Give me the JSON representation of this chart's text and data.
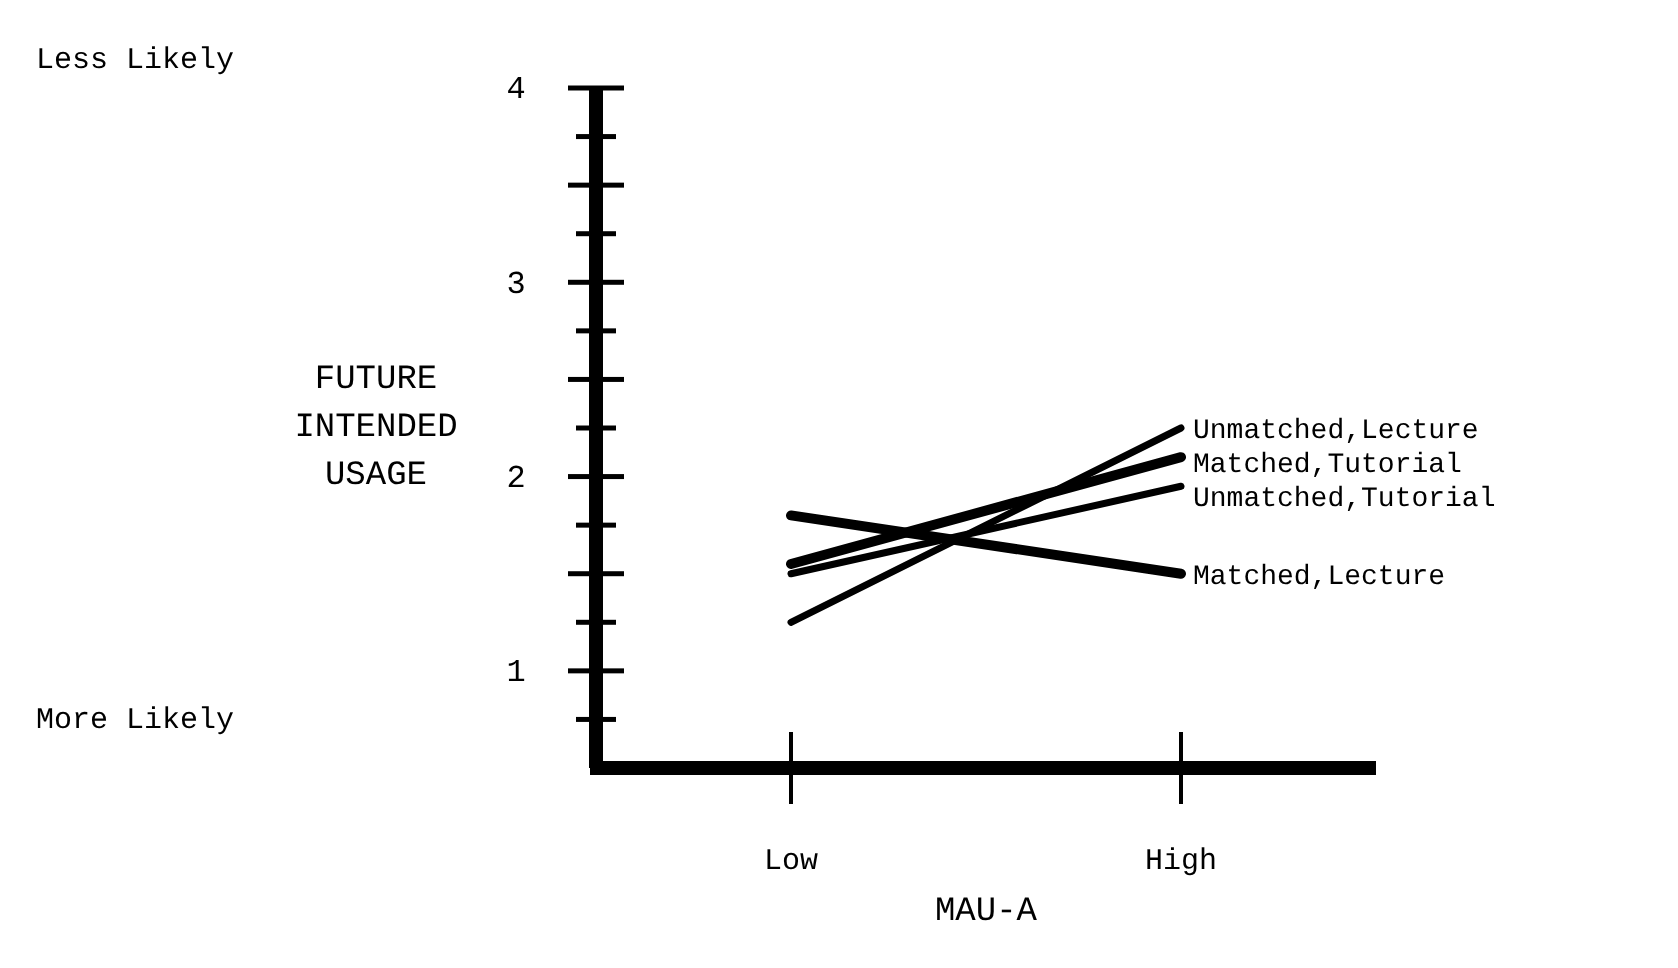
{
  "chart_data": {
    "type": "line",
    "xlabel": "MAU-A",
    "ylabel": "FUTURE INTENDED USAGE",
    "categories": [
      "Low",
      "High"
    ],
    "ylim": [
      0.5,
      4
    ],
    "yticks": [
      {
        "value": 0.75,
        "label": null
      },
      1,
      {
        "value": 1.25,
        "label": null
      },
      {
        "value": 1.5,
        "label": null
      },
      {
        "value": 1.75,
        "label": null
      },
      2,
      {
        "value": 2.25,
        "label": null
      },
      {
        "value": 2.5,
        "label": null
      },
      {
        "value": 2.75,
        "label": null
      },
      3,
      {
        "value": 3.25,
        "label": null
      },
      {
        "value": 3.5,
        "label": null
      },
      {
        "value": 3.75,
        "label": null
      },
      4
    ],
    "series": [
      {
        "name": "Unmatched,Lecture",
        "color": "#000000",
        "values": [
          1.25,
          2.25
        ]
      },
      {
        "name": "Matched,Tutorial",
        "color": "#000000",
        "values": [
          1.55,
          2.1
        ]
      },
      {
        "name": "Unmatched,Tutorial",
        "color": "#000000",
        "values": [
          1.5,
          1.95
        ]
      },
      {
        "name": "Matched,Lecture",
        "color": "#000000",
        "values": [
          1.8,
          1.5
        ]
      }
    ],
    "annotations": [
      "Less Likely",
      "More Likely"
    ],
    "grid": false,
    "legend": false,
    "marker": "none",
    "line_style": "solid"
  }
}
